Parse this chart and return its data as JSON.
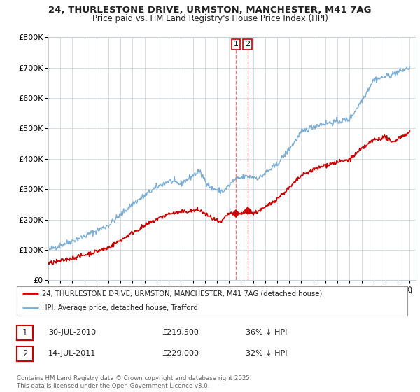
{
  "title_line1": "24, THURLESTONE DRIVE, URMSTON, MANCHESTER, M41 7AG",
  "title_line2": "Price paid vs. HM Land Registry's House Price Index (HPI)",
  "background_color": "#ffffff",
  "plot_bg_color": "#ffffff",
  "grid_color": "#c8d0d8",
  "line1_color": "#cc0000",
  "line2_color": "#7aaed6",
  "vline_color": "#e08080",
  "purchase1_date": 2010.57,
  "purchase1_price": 219500,
  "purchase2_date": 2011.54,
  "purchase2_price": 229000,
  "legend1_label": "24, THURLESTONE DRIVE, URMSTON, MANCHESTER, M41 7AG (detached house)",
  "legend2_label": "HPI: Average price, detached house, Trafford",
  "table_row1": [
    "1",
    "30-JUL-2010",
    "£219,500",
    "36% ↓ HPI"
  ],
  "table_row2": [
    "2",
    "14-JUL-2011",
    "£229,000",
    "32% ↓ HPI"
  ],
  "footer": "Contains HM Land Registry data © Crown copyright and database right 2025.\nThis data is licensed under the Open Government Licence v3.0.",
  "ylim_max": 800000,
  "year_start": 1995,
  "year_end": 2025
}
